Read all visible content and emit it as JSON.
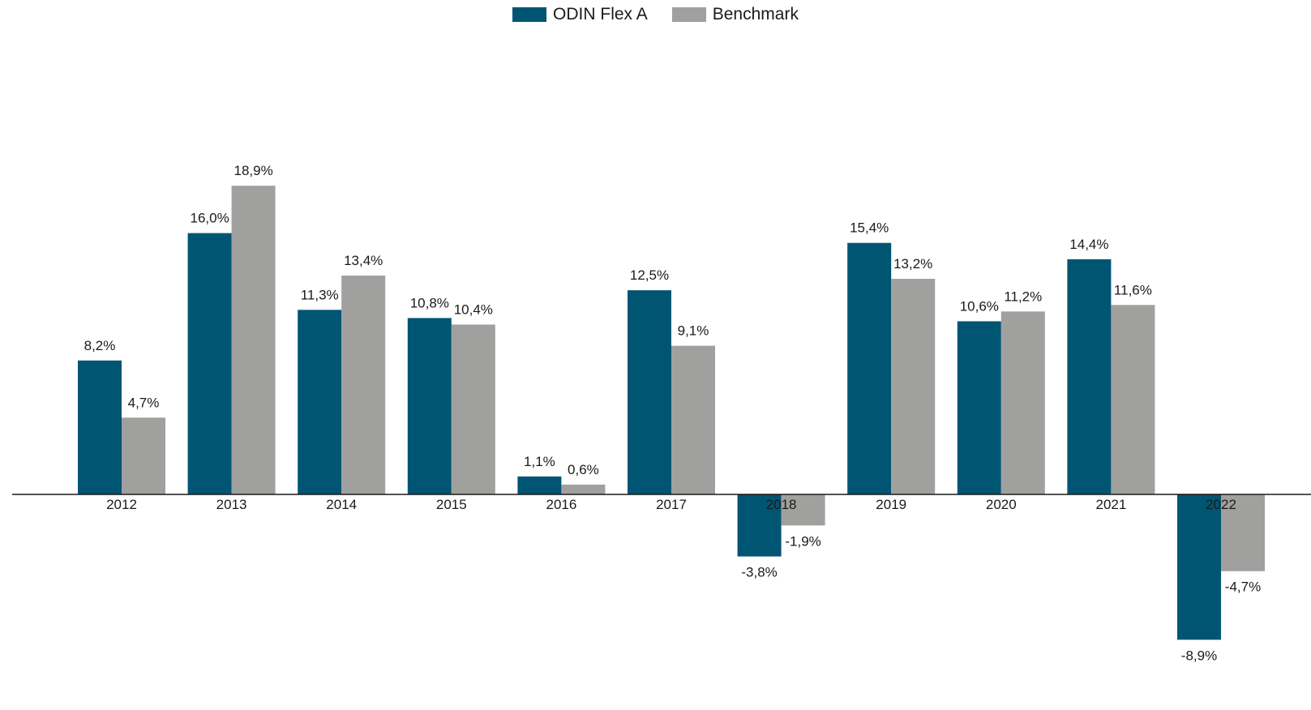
{
  "legend": {
    "items": [
      {
        "name": "ODIN Flex A",
        "color": "#005573"
      },
      {
        "name": "Benchmark",
        "color": "#a0a09e"
      }
    ]
  },
  "chart_data": {
    "type": "bar",
    "title": "",
    "xlabel": "",
    "ylabel": "",
    "ylim": [
      -9.5,
      20.5
    ],
    "grid": false,
    "legend_position": "top-center",
    "categories": [
      "2012",
      "2013",
      "2014",
      "2015",
      "2016",
      "2017",
      "2018",
      "2019",
      "2020",
      "2021",
      "2022"
    ],
    "series": [
      {
        "name": "ODIN Flex A",
        "color": "#005573",
        "values": [
          8.2,
          16.0,
          11.3,
          10.8,
          1.1,
          12.5,
          -3.8,
          15.4,
          10.6,
          14.4,
          -8.9
        ],
        "labels": [
          "8,2%",
          "16,0%",
          "11,3%",
          "10,8%",
          "1,1%",
          "12,5%",
          "-3,8%",
          "15,4%",
          "10,6%",
          "14,4%",
          "-8,9%"
        ]
      },
      {
        "name": "Benchmark",
        "color": "#a0a09e",
        "values": [
          4.7,
          18.9,
          13.4,
          10.4,
          0.6,
          9.1,
          -1.9,
          13.2,
          11.2,
          11.6,
          -4.7
        ],
        "labels": [
          "4,7%",
          "18,9%",
          "13,4%",
          "10,4%",
          "0,6%",
          "9,1%",
          "-1,9%",
          "13,2%",
          "11,2%",
          "11,6%",
          "-4,7%"
        ]
      }
    ]
  }
}
